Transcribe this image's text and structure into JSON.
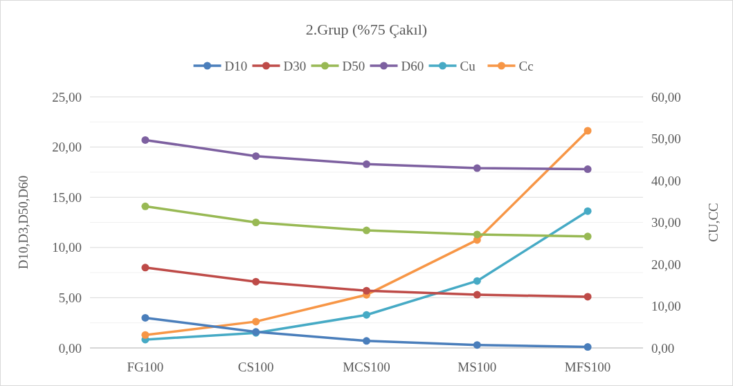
{
  "chart_data": {
    "type": "line",
    "title": "2.Grup (%75 Çakıl)",
    "ylabel": "D10,D3,D50,D60",
    "y2label": "CU,CC",
    "categories": [
      "FG100",
      "CS100",
      "MCS100",
      "MS100",
      "MFS100"
    ],
    "series": [
      {
        "name": "D10",
        "color": "#4a7ebb",
        "values": [
          3.0,
          1.6,
          0.7,
          0.3,
          0.1
        ]
      },
      {
        "name": "D30",
        "color": "#be4b48",
        "values": [
          8.0,
          6.6,
          5.7,
          5.3,
          5.1
        ]
      },
      {
        "name": "D50",
        "color": "#98b954",
        "values": [
          14.1,
          12.5,
          11.7,
          11.3,
          11.1
        ]
      },
      {
        "name": "D60",
        "color": "#7d60a0",
        "values": [
          20.7,
          19.1,
          18.3,
          17.9,
          17.8
        ]
      },
      {
        "name": "Cu",
        "color": "#46aac5",
        "values": [
          2.0,
          3.6,
          7.9,
          16.0,
          32.7
        ],
        "axis": "y2"
      },
      {
        "name": "Cc",
        "color": "#f79646",
        "values": [
          3.1,
          6.3,
          12.7,
          25.8,
          51.9
        ],
        "axis": "y2"
      }
    ],
    "ylim": [
      0,
      25
    ],
    "yticks": [
      {
        "value": 0,
        "label": "0,00"
      },
      {
        "value": 2.5,
        "label": null
      },
      {
        "value": 5,
        "label": "5,00"
      },
      {
        "value": 7.5,
        "label": null
      },
      {
        "value": 10,
        "label": "10,00"
      },
      {
        "value": 12.5,
        "label": null
      },
      {
        "value": 15,
        "label": "15,00"
      },
      {
        "value": 17.5,
        "label": null
      },
      {
        "value": 20,
        "label": "20,00"
      },
      {
        "value": 22.5,
        "label": null
      },
      {
        "value": 25,
        "label": "25,00"
      }
    ],
    "y2lim": [
      0,
      60
    ],
    "y2ticks": [
      {
        "value": 0,
        "label": "0,00"
      },
      {
        "value": 10,
        "label": "10,00"
      },
      {
        "value": 20,
        "label": "20,00"
      },
      {
        "value": 30,
        "label": "30,00"
      },
      {
        "value": 40,
        "label": "40,00"
      },
      {
        "value": 50,
        "label": "50,00"
      },
      {
        "value": 60,
        "label": "60,00"
      }
    ],
    "grid": "y",
    "legend": "top",
    "marker": "circle",
    "line_style": "solid"
  }
}
